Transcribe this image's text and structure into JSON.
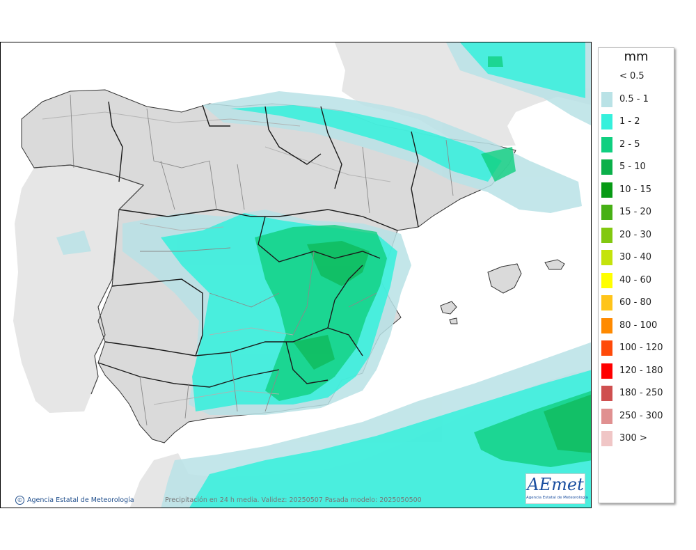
{
  "map": {
    "region": "Península Ibérica y Baleares",
    "colors": {
      "sea": "#ffffff",
      "neighbor_land": "#e6e6e6",
      "spain_land": "#dadada",
      "regional_border": "#1a1a1a",
      "province_border": "#8a8a8a"
    }
  },
  "legend": {
    "unit": "mm",
    "entries": [
      {
        "label": "< 0.5",
        "color": "#ffffff"
      },
      {
        "label": "0.5 - 1",
        "color": "#b9e2e6"
      },
      {
        "label": "1 - 2",
        "color": "#35f0dc"
      },
      {
        "label": "2 - 5",
        "color": "#10cf80"
      },
      {
        "label": "5 - 10",
        "color": "#0bb04a"
      },
      {
        "label": "10 - 15",
        "color": "#079a15"
      },
      {
        "label": "15 - 20",
        "color": "#47b015"
      },
      {
        "label": "20 - 30",
        "color": "#82c810"
      },
      {
        "label": "30 - 40",
        "color": "#c4e30c"
      },
      {
        "label": "40 - 60",
        "color": "#ffff00"
      },
      {
        "label": "60 - 80",
        "color": "#ffc41a"
      },
      {
        "label": "80 - 100",
        "color": "#ff8a00"
      },
      {
        "label": "100 - 120",
        "color": "#ff4a0a"
      },
      {
        "label": "120 - 180",
        "color": "#ff0000"
      },
      {
        "label": "180 - 250",
        "color": "#cf5050"
      },
      {
        "label": "250 - 300",
        "color": "#e09090"
      },
      {
        "label": "300 >",
        "color": "#f0c6c6"
      }
    ]
  },
  "footer": {
    "credit_symbol": "©",
    "credit": "Agencia Estatal de Meteorología",
    "caption": "Precipitación en 24 h media. Validez: 20250507 Pasada modelo: 2025050500"
  },
  "logo": {
    "word": "AEmet",
    "subtitle": "Agencia Estatal de Meteorología",
    "color": "#1b4fa0"
  }
}
